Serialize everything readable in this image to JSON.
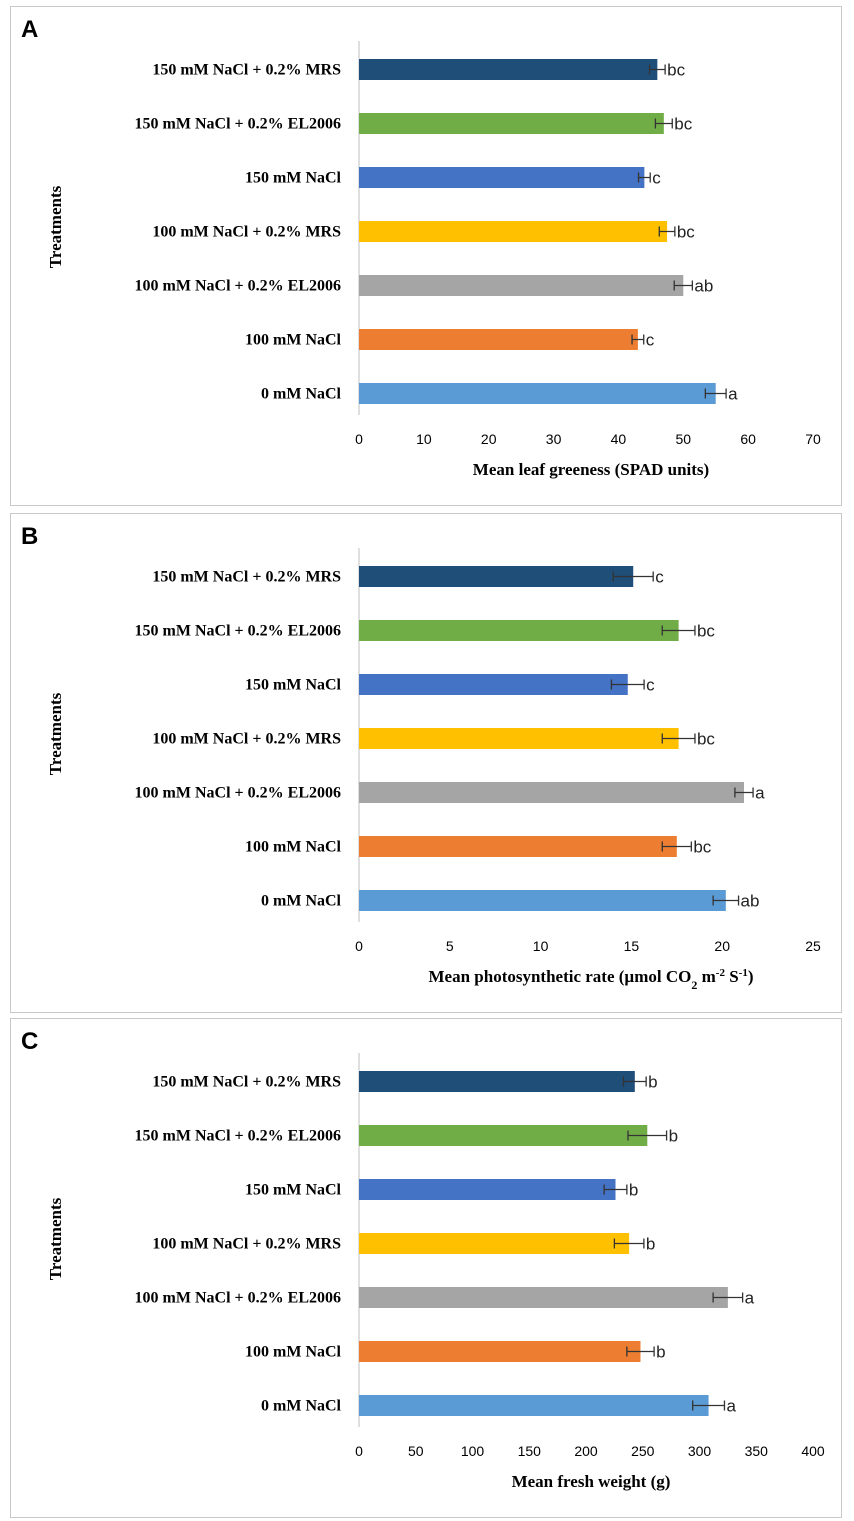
{
  "chart_data": [
    {
      "type": "bar",
      "orientation": "horizontal",
      "panel_label": "A",
      "categories": [
        "150 mM NaCl + 0.2% MRS",
        "150 mM NaCl + 0.2% EL2006",
        "150 mM NaCl",
        "100 mM NaCl + 0.2% MRS",
        "100 mM NaCl + 0.2% EL2006",
        "100 mM NaCl",
        "0 mM NaCl"
      ],
      "values": [
        46,
        47,
        44,
        47.5,
        50,
        43,
        55
      ],
      "errors": [
        1.2,
        1.3,
        0.9,
        1.2,
        1.4,
        0.9,
        1.6
      ],
      "significance": [
        "bc",
        "bc",
        "c",
        "bc",
        "ab",
        "c",
        "a"
      ],
      "colors": [
        "#1f4e79",
        "#70ad47",
        "#4472c4",
        "#ffc000",
        "#a5a5a5",
        "#ed7d31",
        "#5b9bd5"
      ],
      "ylabel": "Treatments",
      "xlabel": "Mean leaf greeness (SPAD units)",
      "xlim": [
        0,
        70
      ],
      "xticks": [
        "0",
        "10",
        "20",
        "30",
        "40",
        "50",
        "60",
        "70"
      ],
      "grid": false
    },
    {
      "type": "bar",
      "orientation": "horizontal",
      "panel_label": "B",
      "categories": [
        "150 mM NaCl + 0.2% MRS",
        "150 mM NaCl + 0.2% EL2006",
        "150 mM NaCl",
        "100 mM NaCl + 0.2% MRS",
        "100 mM NaCl + 0.2% EL2006",
        "100 mM NaCl",
        "0 mM NaCl"
      ],
      "values": [
        15.1,
        17.6,
        14.8,
        17.6,
        21.2,
        17.5,
        20.2
      ],
      "errors": [
        1.1,
        0.9,
        0.9,
        0.9,
        0.5,
        0.8,
        0.7
      ],
      "significance": [
        "c",
        "bc",
        "c",
        "bc",
        "a",
        "bc",
        "ab"
      ],
      "colors": [
        "#1f4e79",
        "#70ad47",
        "#4472c4",
        "#ffc000",
        "#a5a5a5",
        "#ed7d31",
        "#5b9bd5"
      ],
      "ylabel": "Treatments",
      "xlabel": "Mean photosynthetic rate (µmol CO",
      "xlabel_sub": "2",
      "xlabel_mid": " m",
      "xlabel_sup1": "-2",
      "xlabel_mid2": " S",
      "xlabel_sup2": "-1",
      "xlabel_end": ")",
      "xlim": [
        0,
        25
      ],
      "xticks": [
        "0",
        "5",
        "10",
        "15",
        "20",
        "25"
      ],
      "grid": false
    },
    {
      "type": "bar",
      "orientation": "horizontal",
      "panel_label": "C",
      "categories": [
        "150 mM NaCl + 0.2% MRS",
        "150 mM NaCl + 0.2% EL2006",
        "150 mM NaCl",
        "100 mM NaCl + 0.2% MRS",
        "100 mM NaCl + 0.2% EL2006",
        "100 mM NaCl",
        "0 mM NaCl"
      ],
      "values": [
        243,
        254,
        226,
        238,
        325,
        248,
        308
      ],
      "errors": [
        10,
        17,
        10,
        13,
        13,
        12,
        14
      ],
      "significance": [
        "b",
        "b",
        "b",
        "b",
        "a",
        "b",
        "a"
      ],
      "colors": [
        "#1f4e79",
        "#70ad47",
        "#4472c4",
        "#ffc000",
        "#a5a5a5",
        "#ed7d31",
        "#5b9bd5"
      ],
      "ylabel": "Treatments",
      "xlabel": "Mean fresh weight (g)",
      "xlim": [
        0,
        400
      ],
      "xticks": [
        "0",
        "50",
        "100",
        "150",
        "200",
        "250",
        "300",
        "350",
        "400"
      ],
      "grid": false
    }
  ]
}
